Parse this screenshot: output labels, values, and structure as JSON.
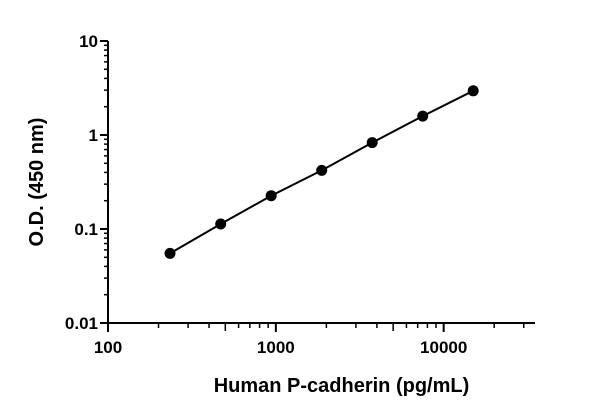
{
  "chart_data": {
    "type": "scatter",
    "title": "",
    "xlabel": "Human P-cadherin (pg/mL)",
    "ylabel": "O.D. (450 nm)",
    "x_scale": "log",
    "y_scale": "log",
    "xlim": [
      100,
      35000
    ],
    "ylim": [
      0.01,
      10
    ],
    "x_ticks": [
      100,
      1000,
      10000
    ],
    "x_tick_labels": [
      "100",
      "1000",
      "10000"
    ],
    "y_ticks": [
      0.01,
      0.1,
      1,
      10
    ],
    "y_tick_labels": [
      "0.01",
      "0.1",
      "1",
      "10"
    ],
    "grid": false,
    "legend": "none",
    "series": [
      {
        "marker": "filled-circle",
        "line": "fit-curve",
        "color": "#000000",
        "x": [
          234,
          469,
          938,
          1875,
          3750,
          7500,
          15000
        ],
        "y": [
          0.055,
          0.113,
          0.226,
          0.42,
          0.83,
          1.59,
          2.95
        ]
      }
    ]
  }
}
